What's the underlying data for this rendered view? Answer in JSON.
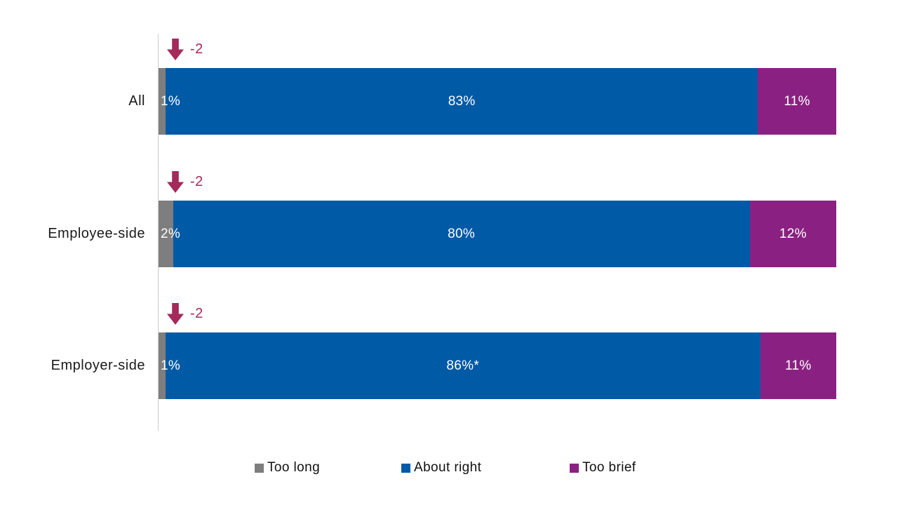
{
  "chart_data": {
    "type": "bar",
    "variant": "horizontal-stacked-100",
    "title": "",
    "categories": [
      "All",
      "Employee-side",
      "Employer-side"
    ],
    "series": [
      {
        "name": "Too long",
        "color": "#7E7E7E",
        "values": [
          1,
          2,
          1
        ],
        "labels": [
          "1%",
          "2%",
          "1%"
        ]
      },
      {
        "name": "About right",
        "color": "#005AA6",
        "values": [
          83,
          80,
          86
        ],
        "labels": [
          "83%",
          "80%",
          "86%*"
        ]
      },
      {
        "name": "Too brief",
        "color": "#8A2182",
        "values": [
          11,
          12,
          11
        ],
        "labels": [
          "11%",
          "12%",
          "11%"
        ]
      }
    ],
    "annotations": [
      {
        "category": "All",
        "change": "-2",
        "direction": "down"
      },
      {
        "category": "Employee-side",
        "change": "-2",
        "direction": "down"
      },
      {
        "category": "Employer-side",
        "change": "-2",
        "direction": "down"
      }
    ],
    "legend": {
      "position": "bottom",
      "items": [
        {
          "label": "Too long",
          "color": "#7E7E7E"
        },
        {
          "label": "About right",
          "color": "#005AA6"
        },
        {
          "label": "Too brief",
          "color": "#8A2182"
        }
      ]
    },
    "value_label_color": "#FFFFFF",
    "annotation_color": "#A32A5B",
    "axis_line_color": "#CDCDCD",
    "gridlines": false,
    "xlabel": "",
    "ylabel": ""
  }
}
